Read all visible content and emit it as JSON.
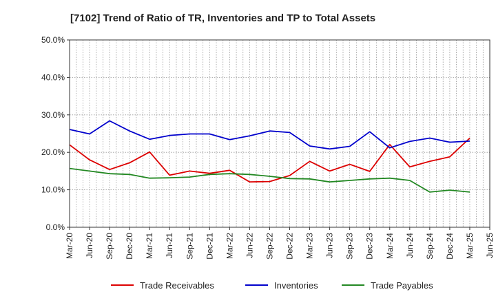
{
  "chart_data": {
    "type": "line",
    "title": "[7102]  Trend of Ratio of TR, Inventories and TP to Total Assets",
    "xlabel": "",
    "ylabel": "",
    "ylim": [
      0,
      50
    ],
    "y_ticks": [
      "0.0%",
      "10.0%",
      "20.0%",
      "30.0%",
      "40.0%",
      "50.0%"
    ],
    "x_ticks": [
      "Mar-20",
      "Jun-20",
      "Sep-20",
      "Dec-20",
      "Mar-21",
      "Jun-21",
      "Sep-21",
      "Dec-21",
      "Mar-22",
      "Jun-22",
      "Sep-22",
      "Dec-22",
      "Mar-23",
      "Jun-23",
      "Sep-23",
      "Dec-23",
      "Mar-24",
      "Jun-24",
      "Sep-24",
      "Dec-24",
      "Mar-25",
      "Jun-25"
    ],
    "grid": true,
    "legend_position": "bottom",
    "categories": [
      "Mar-20",
      "Jun-20",
      "Sep-20",
      "Dec-20",
      "Mar-21",
      "Jun-21",
      "Sep-21",
      "Dec-21",
      "Mar-22",
      "Jun-22",
      "Sep-22",
      "Dec-22",
      "Mar-23",
      "Jun-23",
      "Sep-23",
      "Dec-23",
      "Mar-24",
      "Jun-24",
      "Sep-24",
      "Dec-24",
      "Mar-25"
    ],
    "series": [
      {
        "name": "Trade Receivables",
        "color": "#dd0000",
        "values": [
          22.0,
          18.0,
          15.4,
          17.2,
          20.1,
          13.9,
          15.0,
          14.4,
          15.2,
          12.1,
          12.2,
          13.8,
          17.6,
          15.0,
          16.8,
          14.9,
          22.1,
          16.1,
          17.6,
          18.8,
          23.8
        ]
      },
      {
        "name": "Inventories",
        "color": "#0000cc",
        "values": [
          26.1,
          24.9,
          28.4,
          25.7,
          23.5,
          24.5,
          24.9,
          24.9,
          23.4,
          24.4,
          25.7,
          25.3,
          21.7,
          20.9,
          21.6,
          25.5,
          21.2,
          22.9,
          23.8,
          22.7,
          23.0
        ]
      },
      {
        "name": "Trade Payables",
        "color": "#228822",
        "values": [
          15.7,
          15.0,
          14.3,
          14.1,
          13.1,
          13.2,
          13.4,
          14.1,
          14.3,
          14.1,
          13.6,
          13.0,
          12.9,
          12.1,
          12.5,
          12.9,
          13.1,
          12.5,
          9.4,
          9.9,
          9.4
        ]
      }
    ]
  }
}
